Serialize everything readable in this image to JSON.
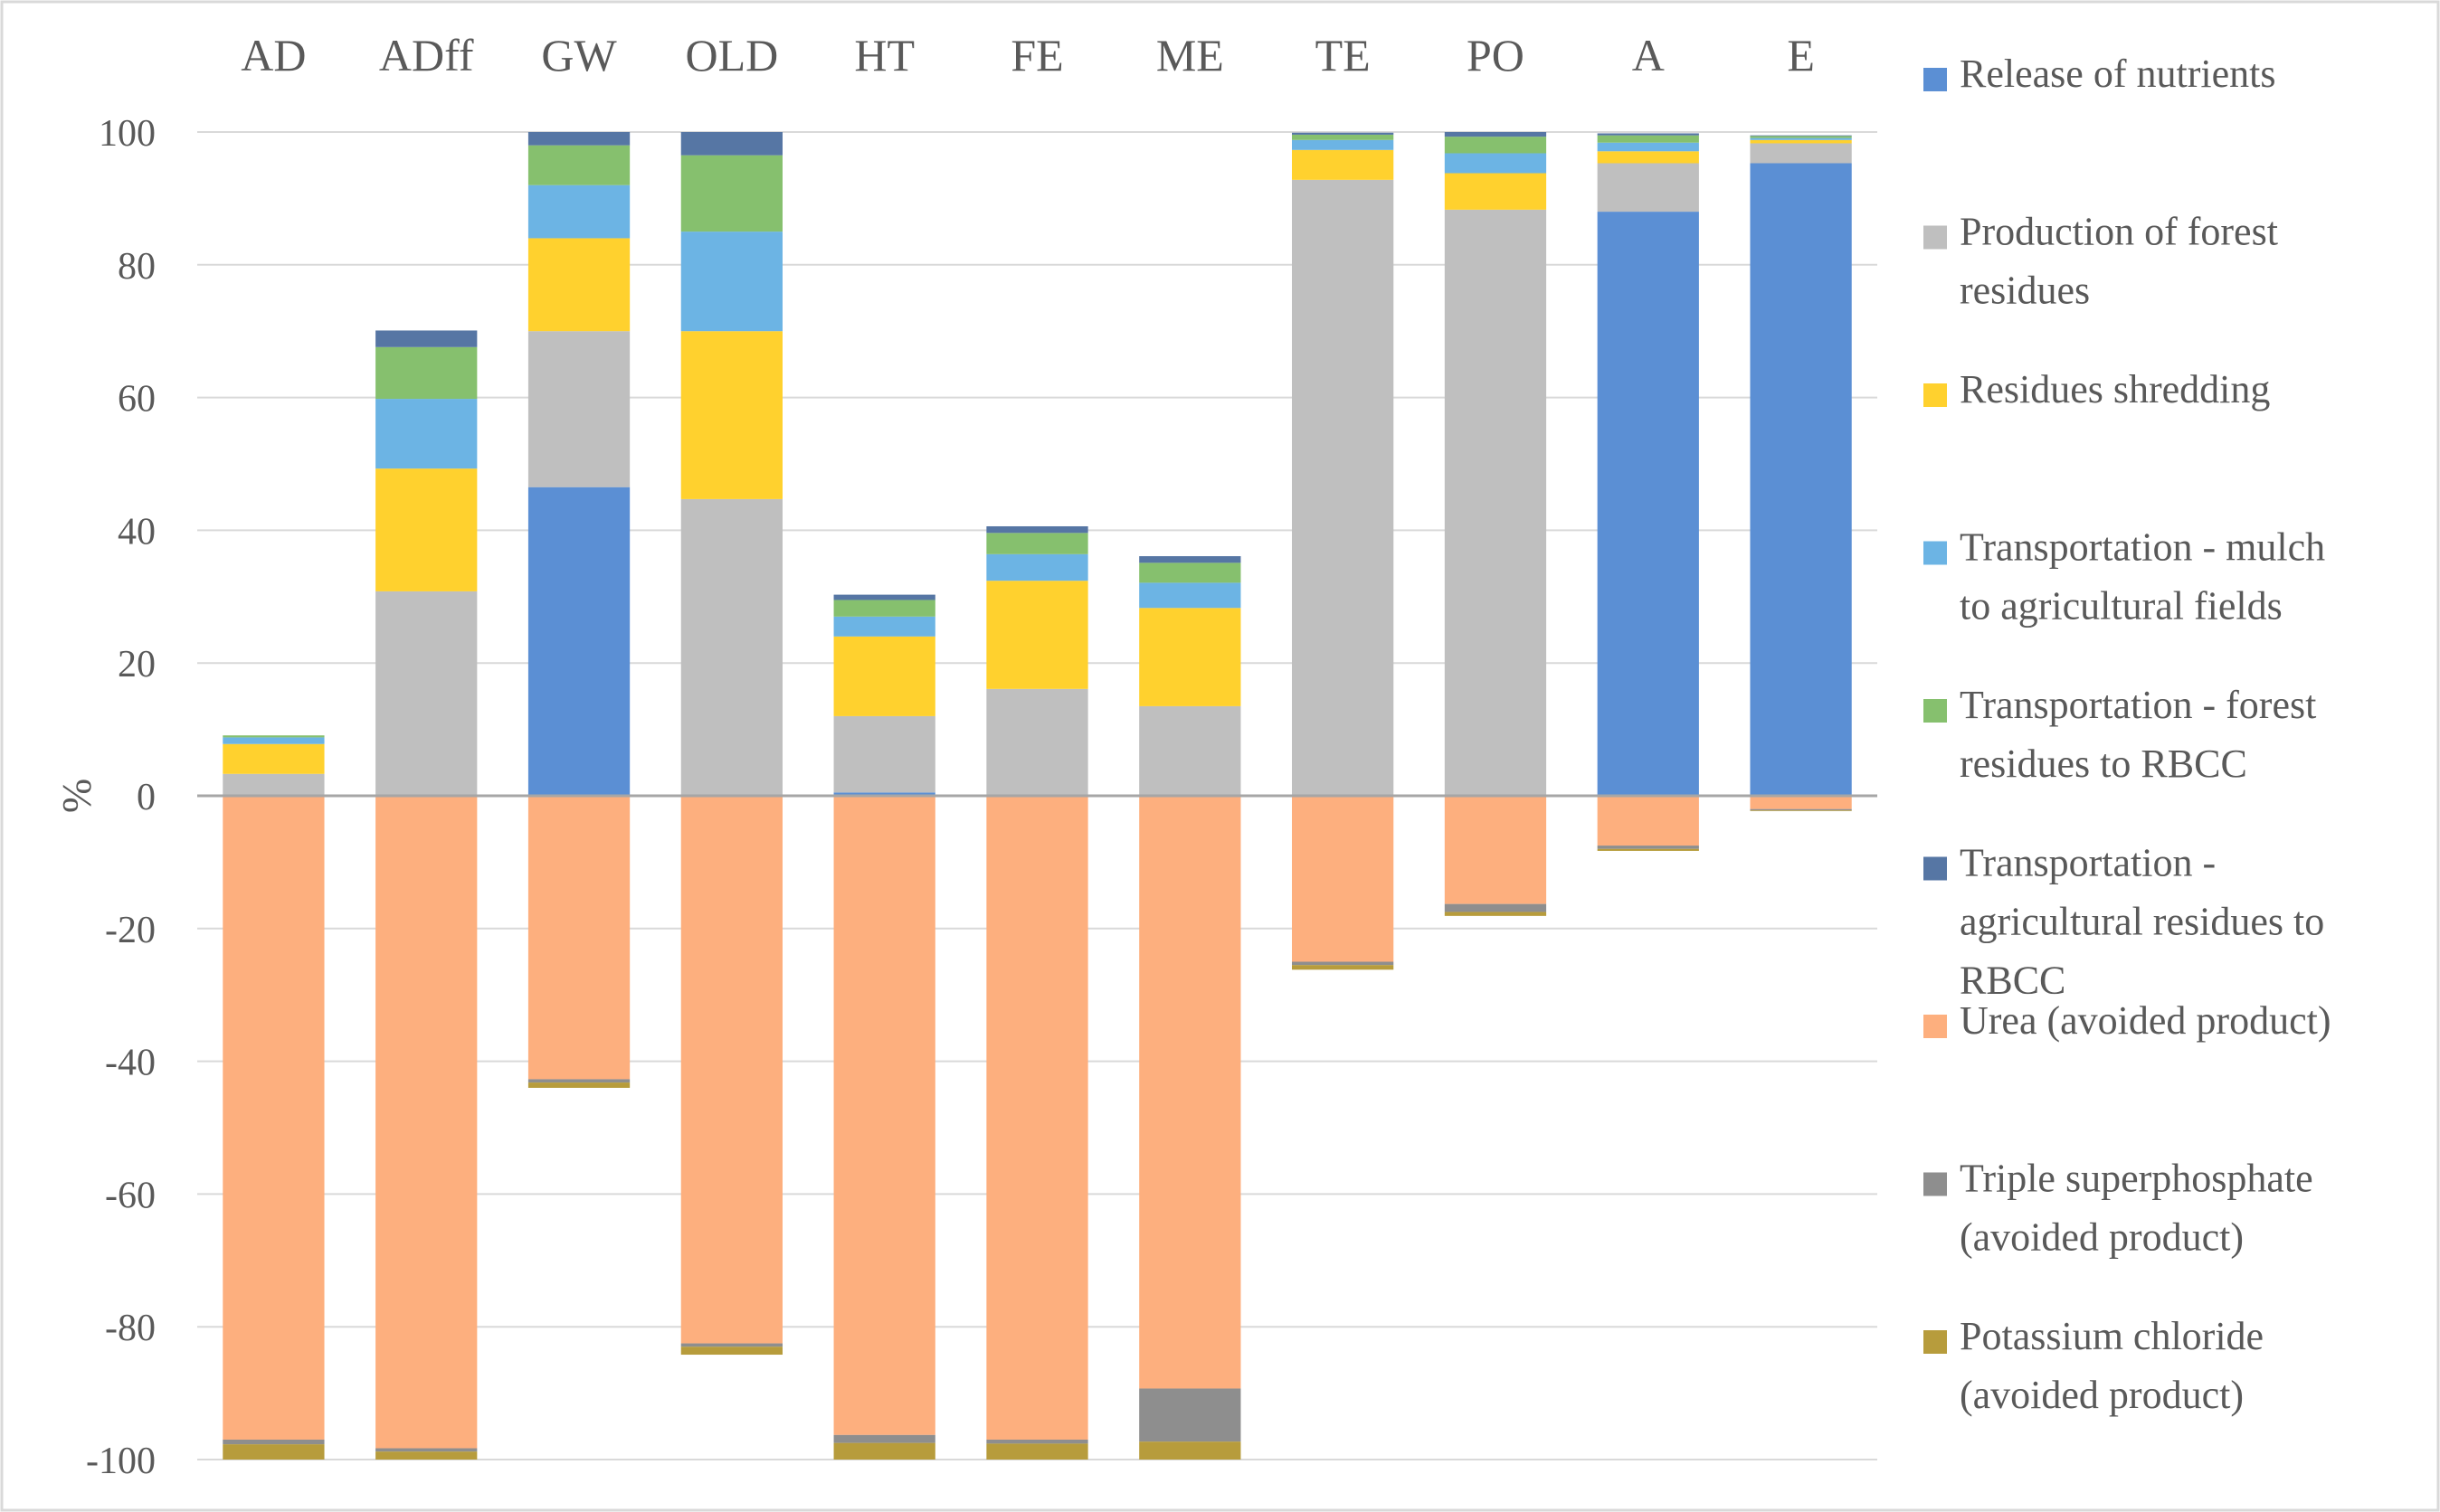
{
  "chart_data": {
    "type": "bar",
    "stacked": true,
    "title": "",
    "xlabel": "",
    "ylabel": "%",
    "ylim": [
      -100,
      100
    ],
    "yticks": [
      100,
      80,
      60,
      40,
      20,
      0,
      -20,
      -40,
      -60,
      -80,
      -100
    ],
    "grid": true,
    "legend_position": "right",
    "categories": [
      "AD",
      "ADff",
      "GW",
      "OLD",
      "HT",
      "FE",
      "ME",
      "TE",
      "PO",
      "A",
      "E"
    ],
    "series": [
      {
        "name": "Release of nutrients",
        "color": "#5B8FD4",
        "values": [
          0,
          0,
          46.5,
          0,
          0.5,
          0,
          0,
          0,
          0,
          88,
          95.3
        ]
      },
      {
        "name": "Production of forest residues",
        "color": "#BFBFBF",
        "values": [
          3.3,
          30.8,
          23.5,
          44.7,
          11.5,
          16.1,
          13.5,
          92.8,
          88.3,
          7.3,
          3.0
        ]
      },
      {
        "name": "Residues shredding",
        "color": "#FFD12E",
        "values": [
          4.5,
          18.5,
          14.0,
          25.3,
          12.0,
          16.3,
          14.8,
          4.5,
          5.5,
          1.8,
          0.5
        ]
      },
      {
        "name": "Transportation - mulch to agricultural fields",
        "color": "#6CB4E4",
        "values": [
          1.0,
          10.5,
          8.0,
          15.0,
          3.0,
          4.0,
          3.8,
          1.5,
          3.0,
          1.3,
          0.3
        ]
      },
      {
        "name": "Transportation - forest residues to RBCC",
        "color": "#86C06E",
        "values": [
          0.3,
          7.8,
          6.0,
          11.5,
          2.5,
          3.2,
          3.0,
          0.8,
          2.5,
          1.1,
          0.3
        ]
      },
      {
        "name": "Transportation - agricultural residues to RBCC",
        "color": "#5676A4",
        "values": [
          0,
          2.5,
          2.0,
          3.5,
          0.8,
          1.0,
          1.0,
          0.3,
          0.7,
          0.3,
          0.1
        ]
      },
      {
        "name": "Urea (avoided product)",
        "color": "#FDAF7E",
        "values": [
          -97.0,
          -98.3,
          -42.7,
          -82.5,
          -96.3,
          -97.0,
          -89.3,
          -25.0,
          -16.3,
          -7.5,
          -2.0
        ]
      },
      {
        "name": "Triple superphosphate (avoided product)",
        "color": "#8E8E8E",
        "values": [
          -0.7,
          -0.5,
          -0.5,
          -0.5,
          -1.2,
          -0.6,
          -8.0,
          -0.5,
          -1.2,
          -0.5,
          -0.2
        ]
      },
      {
        "name": "Potassium chloride (avoided product)",
        "color": "#B79C3C",
        "values": [
          -2.3,
          -1.2,
          -0.8,
          -1.2,
          -2.5,
          -2.4,
          -2.7,
          -0.7,
          -0.6,
          -0.3,
          -0.1
        ]
      }
    ]
  },
  "legend_lines": [
    [
      "Release of nutrients"
    ],
    [
      "Production of forest",
      "residues"
    ],
    [
      "Residues shredding"
    ],
    [
      "Transportation - mulch",
      "to agricultural fields"
    ],
    [
      "Transportation - forest",
      "residues to RBCC"
    ],
    [
      "Transportation -",
      "agricultural residues to",
      "RBCC"
    ],
    [
      "Urea (avoided product)"
    ],
    [
      "Triple superphosphate",
      "(avoided product)"
    ],
    [
      "Potassium chloride",
      "(avoided product)"
    ]
  ]
}
